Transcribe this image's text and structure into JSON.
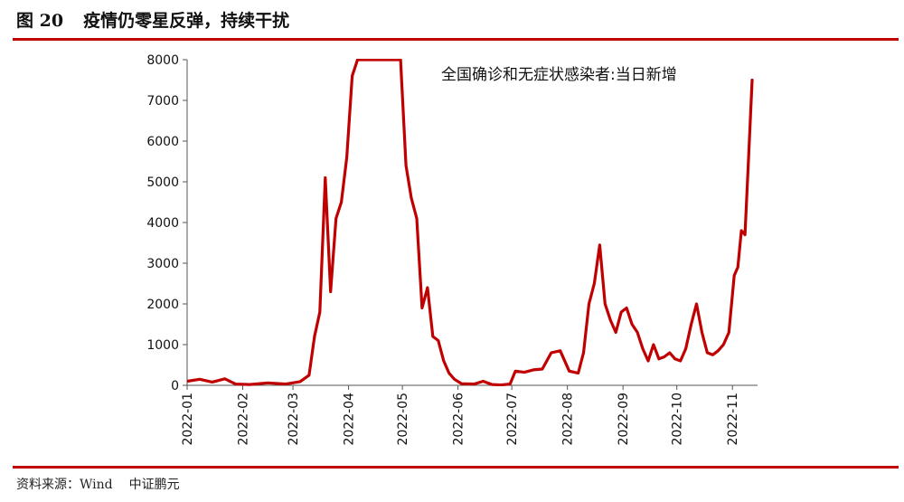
{
  "header": {
    "fig_number": "图 20",
    "title": "疫情仍零星反弹，持续干扰"
  },
  "footer": {
    "source": "资料来源：Wind",
    "brand": "中证鹏元"
  },
  "chart_data": {
    "type": "line",
    "title": "",
    "annotation": "全国确诊和无症状感染者:当日新增",
    "xlabel": "",
    "ylabel": "",
    "ylim": [
      0,
      8000
    ],
    "y_ticks": [
      0,
      1000,
      2000,
      3000,
      4000,
      5000,
      6000,
      7000,
      8000
    ],
    "x_ticks": [
      "2022-01",
      "2022-02",
      "2022-03",
      "2022-04",
      "2022-05",
      "2022-06",
      "2022-07",
      "2022-08",
      "2022-09",
      "2022-10",
      "2022-11"
    ],
    "series_color": "#c00000",
    "series": [
      {
        "name": "",
        "x": [
          "2022-01-01",
          "2022-01-08",
          "2022-01-15",
          "2022-01-22",
          "2022-01-28",
          "2022-02-05",
          "2022-02-15",
          "2022-02-25",
          "2022-03-05",
          "2022-03-10",
          "2022-03-13",
          "2022-03-16",
          "2022-03-19",
          "2022-03-22",
          "2022-03-25",
          "2022-03-28",
          "2022-03-31",
          "2022-04-03",
          "2022-04-06",
          "2022-04-09",
          "2022-04-12",
          "2022-04-15",
          "2022-04-18",
          "2022-04-21",
          "2022-04-24",
          "2022-04-27",
          "2022-04-30",
          "2022-05-03",
          "2022-05-06",
          "2022-05-09",
          "2022-05-12",
          "2022-05-15",
          "2022-05-18",
          "2022-05-21",
          "2022-05-24",
          "2022-05-27",
          "2022-05-30",
          "2022-06-03",
          "2022-06-10",
          "2022-06-15",
          "2022-06-20",
          "2022-06-25",
          "2022-06-30",
          "2022-07-03",
          "2022-07-08",
          "2022-07-13",
          "2022-07-18",
          "2022-07-23",
          "2022-07-28",
          "2022-08-02",
          "2022-08-07",
          "2022-08-10",
          "2022-08-13",
          "2022-08-16",
          "2022-08-19",
          "2022-08-22",
          "2022-08-25",
          "2022-08-28",
          "2022-08-31",
          "2022-09-03",
          "2022-09-06",
          "2022-09-09",
          "2022-09-12",
          "2022-09-15",
          "2022-09-18",
          "2022-09-21",
          "2022-09-24",
          "2022-09-27",
          "2022-09-30",
          "2022-10-03",
          "2022-10-06",
          "2022-10-09",
          "2022-10-12",
          "2022-10-15",
          "2022-10-18",
          "2022-10-21",
          "2022-10-24",
          "2022-10-27",
          "2022-10-30",
          "2022-11-02",
          "2022-11-04",
          "2022-11-06",
          "2022-11-08",
          "2022-11-10",
          "2022-11-12"
        ],
        "y": [
          100,
          150,
          80,
          160,
          30,
          20,
          60,
          30,
          90,
          250,
          1200,
          1800,
          5100,
          2300,
          4100,
          4500,
          5600,
          7600,
          8000,
          8000,
          8000,
          8000,
          8000,
          8000,
          8000,
          8000,
          8000,
          5400,
          4600,
          4100,
          1900,
          2400,
          1200,
          1100,
          600,
          300,
          150,
          40,
          30,
          100,
          20,
          10,
          30,
          350,
          320,
          380,
          400,
          800,
          850,
          350,
          300,
          800,
          2000,
          2500,
          3450,
          2000,
          1600,
          1300,
          1800,
          1900,
          1500,
          1300,
          900,
          600,
          1000,
          650,
          700,
          800,
          650,
          600,
          900,
          1500,
          2000,
          1300,
          800,
          750,
          850,
          1000,
          1300,
          2700,
          2900,
          3800,
          3700,
          5600,
          7500
        ]
      }
    ]
  }
}
